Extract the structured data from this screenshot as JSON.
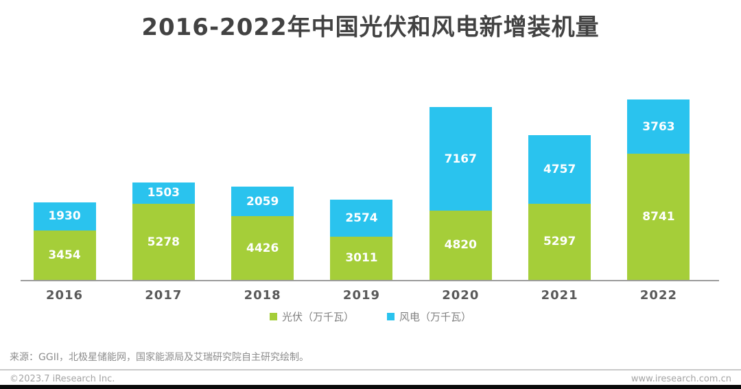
{
  "title": "2016-2022年中国光伏和风电新增装机量",
  "chart_data": {
    "type": "bar",
    "stacked": true,
    "orientation": "vertical",
    "title": "2016-2022年中国光伏和风电新增装机量",
    "categories": [
      "2016",
      "2017",
      "2018",
      "2019",
      "2020",
      "2021",
      "2022"
    ],
    "series": [
      {
        "name": "光伏（万千瓦）",
        "color": "#a5ce39",
        "values": [
          3454,
          5278,
          4426,
          3011,
          4820,
          5297,
          8741
        ]
      },
      {
        "name": "风电（万千瓦）",
        "color": "#2ac3ee",
        "values": [
          1930,
          1503,
          2059,
          2574,
          7167,
          4757,
          3763
        ]
      }
    ],
    "totals": [
      5384,
      6781,
      6485,
      5585,
      11987,
      10054,
      12504
    ],
    "xlabel": "",
    "ylabel": "",
    "ylim": [
      0,
      12504
    ],
    "grid": false,
    "y_axis_visible": false,
    "legend_position": "bottom",
    "value_labels": "inside-white"
  },
  "source_note": "来源：GGII，北极星储能网，国家能源局及艾瑞研究院自主研究绘制。",
  "footer": {
    "copyright": "©2023.7 iResearch Inc.",
    "website": "www.iresearch.com.cn"
  },
  "colors": {
    "pv_green": "#a5ce39",
    "wind_blue": "#2ac3ee",
    "title_text": "#424242",
    "axis_line": "#9b9b9b",
    "bottom_bar": "#0a0a0a"
  }
}
